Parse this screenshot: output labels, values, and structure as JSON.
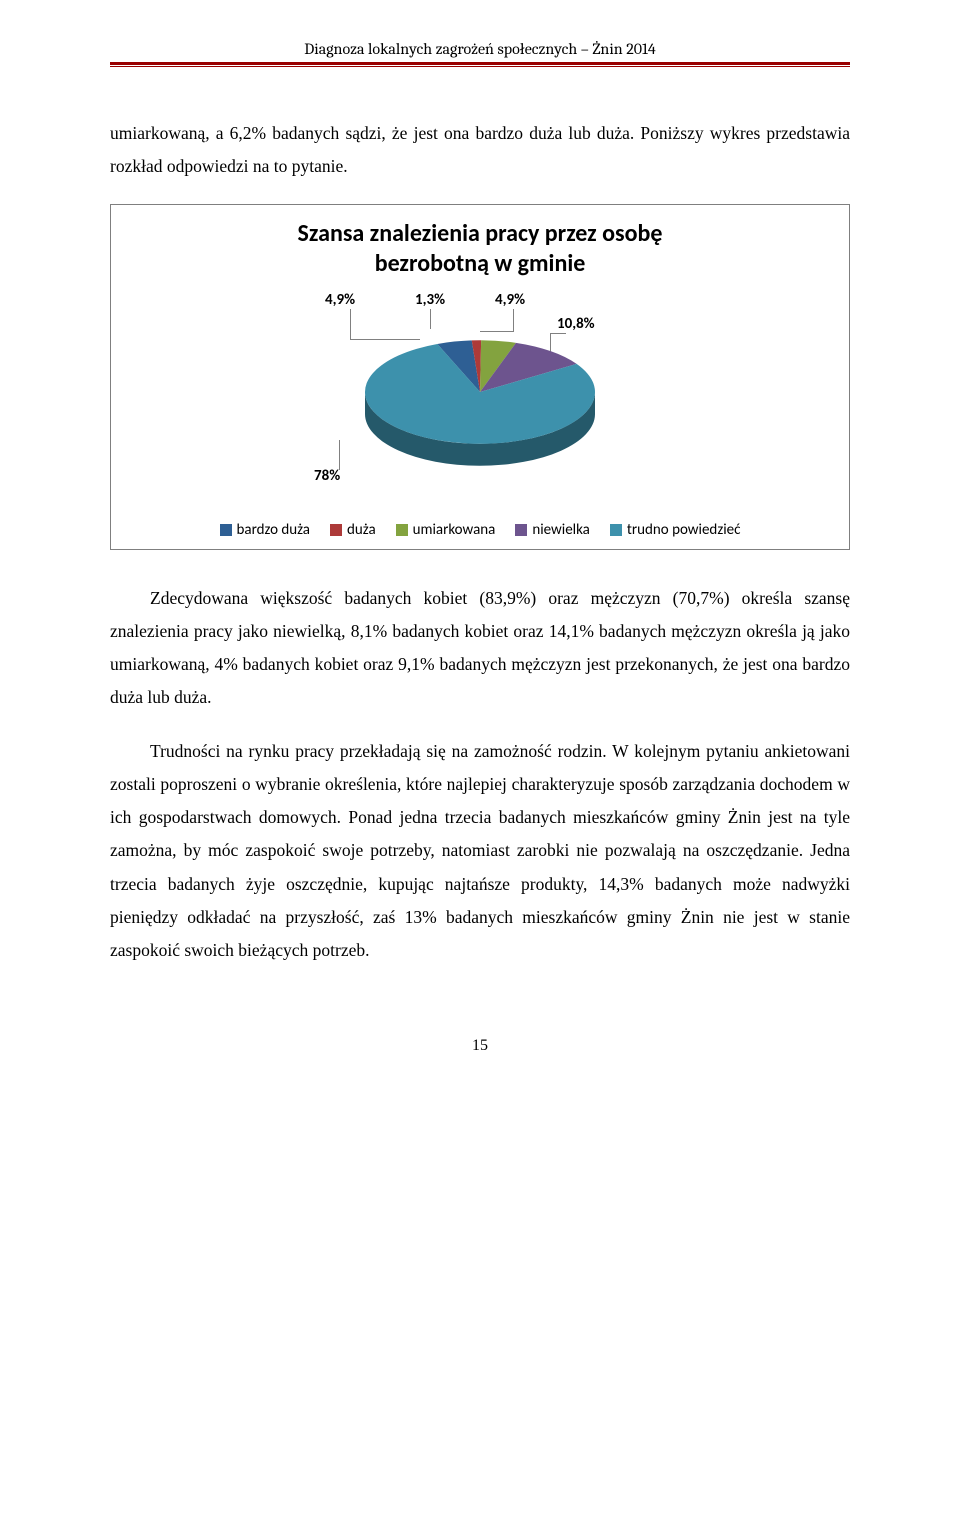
{
  "header": {
    "title": "Diagnoza lokalnych zagrożeń społecznych – Żnin 2014"
  },
  "intro": {
    "text": "umiarkowaną, a 6,2% badanych sądzi, że jest ona bardzo duża lub duża. Poniższy wykres przedstawia rozkład odpowiedzi na to pytanie."
  },
  "chart": {
    "type": "pie",
    "title_line1": "Szansa znalezienia pracy przez osobę",
    "title_line2": "bezrobotną w gminie",
    "title_fontsize": 24,
    "background_color": "#ffffff",
    "border_color": "#7f7f7f",
    "data_label_fontsize": 15,
    "data_label_weight": "bold",
    "data_label_color": "#000000",
    "legend_fontsize": 15,
    "slices": [
      {
        "label": "bardzo duża",
        "value": 4.9,
        "display": "4,9%",
        "color": "#2e5f94"
      },
      {
        "label": "duża",
        "value": 1.3,
        "display": "1,3%",
        "color": "#ad3a39"
      },
      {
        "label": "umiarkowana",
        "value": 4.9,
        "display": "4,9%",
        "color": "#83a33f"
      },
      {
        "label": "niewielka",
        "value": 10.8,
        "display": "10,8%",
        "color": "#6d548e"
      },
      {
        "label": "trudno powiedzieć",
        "value": 78,
        "display": "78%",
        "color": "#3d91ac"
      }
    ],
    "largest_slice_display": "78%",
    "pie_radius": 115,
    "pie_depth": 22,
    "aspect_vertical": 0.45
  },
  "body": {
    "para1": "Zdecydowana większość badanych kobiet (83,9%) oraz mężczyzn (70,7%) określa szansę znalezienia pracy jako niewielką, 8,1% badanych kobiet oraz 14,1% badanych mężczyzn określa ją jako umiarkowaną, 4% badanych kobiet oraz 9,1% badanych mężczyzn jest przekonanych, że jest ona bardzo duża lub duża.",
    "para2": "Trudności na rynku pracy przekładają się na zamożność rodzin. W kolejnym pytaniu ankietowani zostali poproszeni o wybranie określenia, które najlepiej charakteryzuje sposób zarządzania dochodem w ich gospodarstwach domowych. Ponad jedna trzecia badanych mieszkańców gminy Żnin jest na tyle zamożna, by móc zaspokoić swoje potrzeby, natomiast zarobki nie pozwalają na oszczędzanie. Jedna trzecia badanych żyje oszczędnie, kupując najtańsze produkty, 14,3% badanych może nadwyżki pieniędzy odkładać na przyszłość, zaś 13% badanych mieszkańców gminy Żnin nie jest w stanie zaspokoić swoich bieżących potrzeb."
  },
  "page_number": "15"
}
